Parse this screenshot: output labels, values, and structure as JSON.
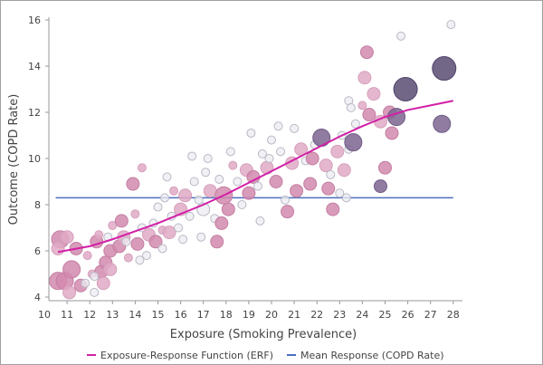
{
  "chart_data": {
    "type": "scatter",
    "xlabel": "Exposure (Smoking Prevalence)",
    "ylabel": "Outcome (COPD Rate)",
    "xlim": [
      10,
      28
    ],
    "ylim": [
      4,
      16
    ],
    "xticks": [
      10,
      11,
      12,
      13,
      14,
      15,
      16,
      17,
      18,
      19,
      20,
      21,
      22,
      23,
      24,
      25,
      26,
      27,
      28
    ],
    "yticks": [
      4,
      6,
      8,
      10,
      12,
      14,
      16
    ],
    "grid": false,
    "legend_placement": "bottom",
    "colors": {
      "erf": "#d21fa6",
      "mean": "#4a6fbf",
      "shades": [
        "#ececf2",
        "#e0aac6",
        "#d28aae",
        "#7d6590",
        "#5a4c72"
      ]
    },
    "points_format": [
      "x",
      "y",
      "size",
      "shade"
    ],
    "points": [
      [
        10.6,
        4.7,
        3,
        2
      ],
      [
        10.9,
        4.7,
        3,
        2
      ],
      [
        10.7,
        6.5,
        3,
        2
      ],
      [
        11.0,
        6.6,
        2,
        1
      ],
      [
        10.6,
        6.1,
        2,
        1
      ],
      [
        11.2,
        5.2,
        3,
        2
      ],
      [
        11.6,
        4.5,
        2,
        2
      ],
      [
        11.1,
        4.2,
        2,
        1
      ],
      [
        11.4,
        6.1,
        2,
        2
      ],
      [
        11.9,
        5.8,
        1,
        1
      ],
      [
        11.8,
        4.6,
        1,
        0
      ],
      [
        12.3,
        6.4,
        2,
        2
      ],
      [
        12.1,
        5.0,
        1,
        1
      ],
      [
        12.5,
        5.1,
        2,
        2
      ],
      [
        12.7,
        5.5,
        2,
        2
      ],
      [
        12.6,
        4.6,
        2,
        1
      ],
      [
        12.2,
        4.9,
        1,
        0
      ],
      [
        12.4,
        6.7,
        1,
        1
      ],
      [
        12.9,
        6.0,
        2,
        2
      ],
      [
        13.0,
        7.1,
        1,
        1
      ],
      [
        12.8,
        6.6,
        1,
        0
      ],
      [
        12.2,
        4.2,
        1,
        0
      ],
      [
        12.9,
        5.2,
        2,
        1
      ],
      [
        13.3,
        6.2,
        2,
        2
      ],
      [
        13.5,
        6.6,
        2,
        1
      ],
      [
        13.4,
        7.3,
        2,
        2
      ],
      [
        13.7,
        5.7,
        1,
        1
      ],
      [
        13.9,
        8.9,
        2,
        2
      ],
      [
        14.1,
        6.3,
        2,
        2
      ],
      [
        14.3,
        7.0,
        1,
        0
      ],
      [
        14.0,
        7.6,
        1,
        1
      ],
      [
        14.6,
        6.7,
        2,
        1
      ],
      [
        14.8,
        7.2,
        1,
        0
      ],
      [
        14.5,
        5.8,
        1,
        0
      ],
      [
        14.9,
        6.4,
        2,
        2
      ],
      [
        15.2,
        6.9,
        1,
        1
      ],
      [
        15.0,
        7.9,
        1,
        0
      ],
      [
        15.3,
        8.3,
        1,
        0
      ],
      [
        15.5,
        6.8,
        2,
        1
      ],
      [
        15.6,
        7.5,
        1,
        0
      ],
      [
        15.9,
        7.0,
        1,
        0
      ],
      [
        15.7,
        8.6,
        1,
        1
      ],
      [
        14.3,
        9.6,
        1,
        1
      ],
      [
        15.4,
        9.2,
        1,
        0
      ],
      [
        16.0,
        7.8,
        2,
        1
      ],
      [
        15.2,
        6.1,
        1,
        0
      ],
      [
        13.6,
        6.4,
        1,
        0
      ],
      [
        14.2,
        5.6,
        1,
        0
      ],
      [
        16.2,
        8.4,
        2,
        1
      ],
      [
        16.4,
        7.5,
        1,
        0
      ],
      [
        16.6,
        9.0,
        1,
        0
      ],
      [
        16.8,
        8.2,
        1,
        0
      ],
      [
        17.0,
        7.8,
        2,
        0
      ],
      [
        17.1,
        9.4,
        1,
        0
      ],
      [
        17.3,
        8.6,
        2,
        1
      ],
      [
        17.5,
        7.4,
        1,
        0
      ],
      [
        17.7,
        9.1,
        1,
        0
      ],
      [
        17.9,
        8.4,
        3,
        2
      ],
      [
        18.1,
        7.8,
        2,
        2
      ],
      [
        18.3,
        9.7,
        1,
        1
      ],
      [
        18.5,
        9.0,
        1,
        0
      ],
      [
        18.7,
        8.0,
        1,
        0
      ],
      [
        18.9,
        9.5,
        2,
        1
      ],
      [
        17.6,
        6.4,
        2,
        2
      ],
      [
        17.8,
        7.2,
        2,
        2
      ],
      [
        16.9,
        6.6,
        1,
        0
      ],
      [
        18.2,
        10.3,
        1,
        0
      ],
      [
        16.5,
        10.1,
        1,
        0
      ],
      [
        19.0,
        8.5,
        2,
        2
      ],
      [
        16.1,
        6.5,
        1,
        0
      ],
      [
        17.2,
        10.0,
        1,
        0
      ],
      [
        19.2,
        9.2,
        2,
        2
      ],
      [
        19.4,
        8.8,
        1,
        0
      ],
      [
        19.6,
        10.2,
        1,
        0
      ],
      [
        19.8,
        9.6,
        2,
        1
      ],
      [
        20.0,
        10.8,
        1,
        0
      ],
      [
        20.2,
        9.0,
        2,
        2
      ],
      [
        20.4,
        10.3,
        1,
        0
      ],
      [
        20.6,
        8.2,
        1,
        0
      ],
      [
        20.7,
        7.7,
        2,
        2
      ],
      [
        20.9,
        9.8,
        2,
        1
      ],
      [
        21.1,
        8.6,
        2,
        2
      ],
      [
        21.3,
        10.4,
        2,
        1
      ],
      [
        21.5,
        9.9,
        1,
        0
      ],
      [
        21.7,
        8.9,
        2,
        2
      ],
      [
        21.9,
        10.6,
        1,
        0
      ],
      [
        19.5,
        7.3,
        1,
        0
      ],
      [
        19.1,
        11.1,
        1,
        0
      ],
      [
        20.3,
        11.4,
        1,
        0
      ],
      [
        21.0,
        11.3,
        1,
        0
      ],
      [
        19.9,
        10.0,
        1,
        0
      ],
      [
        22.2,
        10.9,
        3,
        3
      ],
      [
        22.4,
        9.7,
        2,
        1
      ],
      [
        22.6,
        9.3,
        1,
        0
      ],
      [
        22.7,
        7.8,
        2,
        2
      ],
      [
        22.9,
        10.3,
        2,
        1
      ],
      [
        23.1,
        11.0,
        1,
        0
      ],
      [
        23.2,
        9.5,
        2,
        1
      ],
      [
        23.4,
        10.4,
        1,
        0
      ],
      [
        23.6,
        10.7,
        3,
        3
      ],
      [
        23.7,
        11.5,
        1,
        0
      ],
      [
        23.0,
        8.5,
        1,
        0
      ],
      [
        22.5,
        8.7,
        2,
        2
      ],
      [
        23.3,
        8.3,
        1,
        0
      ],
      [
        24.1,
        13.5,
        2,
        1
      ],
      [
        24.2,
        14.6,
        2,
        2
      ],
      [
        24.5,
        12.8,
        2,
        1
      ],
      [
        24.3,
        11.9,
        2,
        2
      ],
      [
        24.0,
        12.3,
        1,
        1
      ],
      [
        24.8,
        11.6,
        2,
        1
      ],
      [
        24.8,
        8.8,
        2,
        3
      ],
      [
        25.0,
        9.6,
        2,
        2
      ],
      [
        25.3,
        11.1,
        2,
        2
      ],
      [
        25.2,
        12.0,
        2,
        2
      ],
      [
        25.5,
        11.8,
        3,
        3
      ],
      [
        25.9,
        13.0,
        4,
        4
      ],
      [
        25.7,
        15.3,
        1,
        0
      ],
      [
        27.6,
        13.9,
        4,
        4
      ],
      [
        27.5,
        11.5,
        3,
        3
      ],
      [
        27.9,
        15.8,
        1,
        0
      ],
      [
        23.4,
        12.5,
        1,
        0
      ],
      [
        23.5,
        12.2,
        1,
        0
      ],
      [
        21.8,
        10.0,
        2,
        2
      ]
    ],
    "series": [
      {
        "name": "Exposure-Response Function (ERF)",
        "type": "line",
        "x": [
          10.6,
          12,
          13,
          14,
          15,
          16,
          17,
          18,
          19,
          20,
          21,
          22,
          23,
          24,
          25,
          26,
          27,
          28
        ],
        "y": [
          5.95,
          6.2,
          6.5,
          6.85,
          7.2,
          7.6,
          8.0,
          8.45,
          8.95,
          9.45,
          9.95,
          10.45,
          10.95,
          11.4,
          11.8,
          12.1,
          12.3,
          12.5
        ]
      },
      {
        "name": "Mean Response (COPD Rate)",
        "type": "line",
        "x": [
          10.5,
          28
        ],
        "y": [
          8.3,
          8.3
        ]
      }
    ]
  }
}
